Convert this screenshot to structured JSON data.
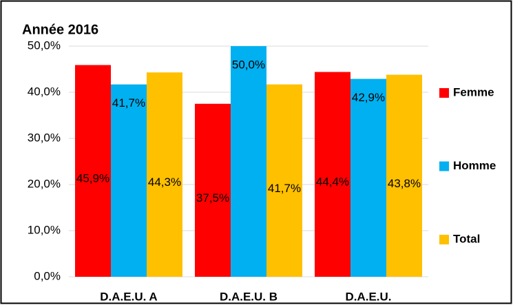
{
  "chart_data": {
    "type": "bar",
    "title": "Année 2016",
    "categories": [
      "D.A.E.U. A",
      "D.A.E.U. B",
      "D.A.E.U."
    ],
    "series": [
      {
        "name": "Femme",
        "color": "#ff0000",
        "values": [
          45.9,
          37.5,
          44.4
        ],
        "value_labels": [
          "45,9%",
          "37,5%",
          "44,4%"
        ]
      },
      {
        "name": "Homme",
        "color": "#00b0f0",
        "values": [
          41.7,
          50.0,
          42.9
        ],
        "value_labels": [
          "41,7%",
          "50,0%",
          "42,9%"
        ]
      },
      {
        "name": "Total",
        "color": "#ffc000",
        "values": [
          44.3,
          41.7,
          43.8
        ],
        "value_labels": [
          "44,3%",
          "41,7%",
          "43,8%"
        ]
      }
    ],
    "ylim": [
      0,
      50
    ],
    "yticks": [
      {
        "value": 0,
        "label": "0,0%"
      },
      {
        "value": 10,
        "label": "10,0%"
      },
      {
        "value": 20,
        "label": "20,0%"
      },
      {
        "value": 30,
        "label": "30,0%"
      },
      {
        "value": 40,
        "label": "40,0%"
      },
      {
        "value": 50,
        "label": "50,0%"
      }
    ],
    "grid": true,
    "legend": "right"
  }
}
